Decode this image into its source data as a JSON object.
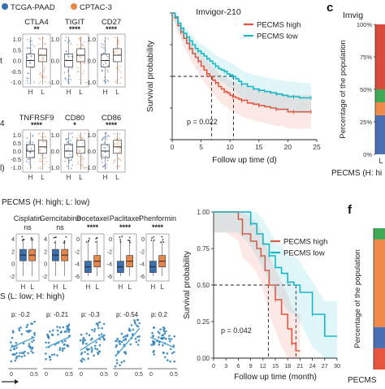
{
  "panel_labels": {
    "b": "b",
    "c": "c",
    "e": "e",
    "f": "f"
  },
  "legend_top": {
    "items": [
      {
        "label": "TCGA-PAAD",
        "color": "#3a6fb0"
      },
      {
        "label": "CPTAC-3",
        "color": "#e8874a"
      }
    ]
  },
  "panel_a": {
    "row1": [
      {
        "label": "CTLA4",
        "sig": "**"
      },
      {
        "label": "TIGIT",
        "sig": "****"
      },
      {
        "label": "CD27",
        "sig": "****"
      }
    ],
    "row1_ticks": [
      "1.0",
      "0.5",
      "0.0",
      "-0.5",
      "-1.0"
    ],
    "row2": [
      {
        "label": "TNFRSF9",
        "sig": "****"
      },
      {
        "label": "CD80",
        "sig": "*"
      },
      {
        "label": "CD86",
        "sig": "****"
      }
    ],
    "row2_ticks": [
      "1.0",
      "0.5",
      "0.0",
      "-0.5",
      "-1.0"
    ],
    "x_ticks": [
      "H",
      "L"
    ],
    "footer": "PECMS (H: high; L: low)",
    "cut_left_1": "t",
    "cut_left_2": "4",
    "cut_left_3": "l)"
  },
  "panel_d": {
    "drugs": [
      {
        "label": "Cisplatin",
        "sig": "ns"
      },
      {
        "label": "Gemcitabine",
        "sig": "ns"
      },
      {
        "label": "Docetaxel",
        "sig": "****"
      },
      {
        "label": "Paclitaxel",
        "sig": "****"
      },
      {
        "label": "Phenformin",
        "sig": "****"
      }
    ],
    "y_ticks": [
      "4",
      "2",
      "0",
      "-2",
      "-4",
      "-6"
    ],
    "x_ticks": [
      "H",
      "L"
    ],
    "footer_cut": "S (L: low; H: high)",
    "scatter": [
      {
        "r": "p: -0.2"
      },
      {
        "r": "p: -0.21"
      },
      {
        "r": "p: -0.3"
      },
      {
        "r": "p: -0.54"
      },
      {
        "r": "p: 0.2"
      }
    ],
    "scatter_x_ticks": [
      "0",
      "0.5"
    ]
  },
  "chart_data": [
    {
      "type": "line",
      "title": "Imvigor-210",
      "xlabel": "Follow up time (d)",
      "ylabel": "Survival probability",
      "xlim": [
        0,
        25
      ],
      "ylim": [
        0,
        1
      ],
      "x_ticks": [
        "0",
        "5",
        "10",
        "15",
        "20",
        "25"
      ],
      "y_ticks": [
        "0.00",
        "0.25",
        "0.50",
        "0.75",
        "1.00"
      ],
      "annotation": "p = 0.022",
      "median_lines": [
        6.8,
        10.6
      ],
      "series": [
        {
          "name": "PECMS high",
          "color": "#e8553e",
          "x": [
            0,
            0.5,
            1,
            1.5,
            2,
            2.5,
            3,
            3.5,
            4,
            4.5,
            5,
            5.5,
            6,
            6.5,
            7,
            7.5,
            8,
            8.5,
            9,
            9.5,
            10,
            10.5,
            11,
            11.5,
            12,
            13,
            14,
            15,
            16,
            17,
            18,
            19,
            20,
            21,
            22,
            23,
            24
          ],
          "y": [
            1.0,
            0.96,
            0.9,
            0.85,
            0.8,
            0.76,
            0.72,
            0.68,
            0.65,
            0.62,
            0.58,
            0.55,
            0.52,
            0.5,
            0.47,
            0.45,
            0.42,
            0.4,
            0.38,
            0.37,
            0.35,
            0.34,
            0.33,
            0.32,
            0.31,
            0.29,
            0.28,
            0.27,
            0.26,
            0.25,
            0.24,
            0.24,
            0.22,
            0.22,
            0.22,
            0.22,
            0.22
          ]
        },
        {
          "name": "PECMS low",
          "color": "#17b7c8",
          "x": [
            0,
            0.5,
            1,
            1.5,
            2,
            2.5,
            3,
            3.5,
            4,
            4.5,
            5,
            5.5,
            6,
            6.5,
            7,
            7.5,
            8,
            8.5,
            9,
            9.5,
            10,
            10.5,
            11,
            11.5,
            12,
            13,
            14,
            15,
            16,
            17,
            18,
            19,
            20,
            21,
            22,
            23,
            24
          ],
          "y": [
            1.0,
            0.97,
            0.92,
            0.88,
            0.84,
            0.81,
            0.78,
            0.75,
            0.72,
            0.7,
            0.68,
            0.66,
            0.64,
            0.62,
            0.6,
            0.58,
            0.56,
            0.55,
            0.54,
            0.52,
            0.51,
            0.5,
            0.48,
            0.46,
            0.44,
            0.42,
            0.4,
            0.39,
            0.38,
            0.37,
            0.36,
            0.35,
            0.34,
            0.34,
            0.33,
            0.33,
            0.33
          ]
        }
      ]
    },
    {
      "type": "line",
      "xlabel": "Follow up time (month)",
      "ylabel": "Survival probability",
      "xlim": [
        0,
        30
      ],
      "ylim": [
        0,
        1
      ],
      "x_ticks": [
        "0",
        "3",
        "6",
        "9",
        "12",
        "15",
        "18",
        "21",
        "24",
        "27",
        "30"
      ],
      "y_ticks": [
        "0.00",
        "0.25",
        "0.50",
        "0.75",
        "1.00"
      ],
      "annotation": "p = 0.042",
      "median_lines": [
        13.3,
        20.0
      ],
      "series": [
        {
          "name": "PECMS high",
          "color": "#e8553e",
          "x": [
            0,
            3,
            6,
            7,
            9,
            10.5,
            11.5,
            12.5,
            13.5,
            15,
            16.5,
            18,
            19,
            20,
            21
          ],
          "y": [
            1.0,
            1.0,
            0.95,
            0.85,
            0.8,
            0.75,
            0.7,
            0.6,
            0.5,
            0.4,
            0.3,
            0.2,
            0.1,
            0.05,
            0.05
          ]
        },
        {
          "name": "PECMS low",
          "color": "#17b7c8",
          "x": [
            0,
            3,
            6,
            9,
            10.5,
            12,
            13.5,
            15,
            16.5,
            18,
            19.5,
            21,
            24,
            27,
            30
          ],
          "y": [
            1.0,
            1.0,
            1.0,
            0.92,
            0.85,
            0.78,
            0.7,
            0.62,
            0.58,
            0.52,
            0.5,
            0.45,
            0.3,
            0.15,
            0.15
          ]
        }
      ]
    },
    {
      "type": "bar",
      "ylabel": "Percentage of the population",
      "y_ticks": [
        "100%",
        "75%",
        "50%",
        "25%",
        "0%"
      ],
      "categories": [
        "L"
      ],
      "top_cut": "Imvig",
      "footer_cut": "PECMS (H: hi",
      "segments": [
        {
          "color": "#d84b3a",
          "value": 50
        },
        {
          "color": "#3eaa55",
          "value": 10
        },
        {
          "color": "#ef8a4a",
          "value": 10
        },
        {
          "color": "#4a6fb5",
          "value": 30
        }
      ]
    },
    {
      "type": "bar",
      "ylabel": "Percentage of the population",
      "footer_cut": "PECMS",
      "segments": [
        {
          "color": "#3eaa55",
          "value": 8
        },
        {
          "color": "#ef8a4a",
          "value": 62
        },
        {
          "color": "#4a6fb5",
          "value": 15
        },
        {
          "color": "#e8553e",
          "value": 15
        }
      ]
    }
  ]
}
